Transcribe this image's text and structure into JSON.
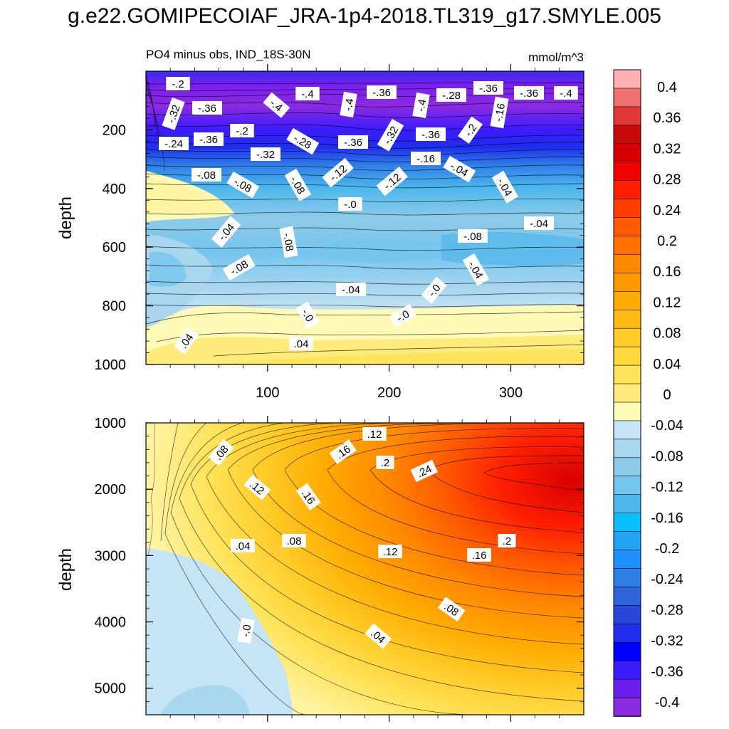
{
  "title": "g.e22.GOMIPECOIAF_JRA-1p4-2018.TL319_g17.SMYLE.005",
  "colors": {
    "neg": [
      "#8a2be2",
      "#6a1ef0",
      "#3b1bff",
      "#0000ff",
      "#1e2fee",
      "#2846d8",
      "#3064dd",
      "#2f7fe8",
      "#1e90ff",
      "#20a5f5",
      "#0cc0ff",
      "#4cb8ec",
      "#74c5ee",
      "#8ecbe8",
      "#a8d7ef",
      "#c6e5f4"
    ],
    "pos": [
      "#fffab5",
      "#ffeb7a",
      "#ffe35a",
      "#ffd83c",
      "#ffcb26",
      "#ffbb12",
      "#ffaa00",
      "#ff9900",
      "#ff8a00",
      "#ff7200",
      "#ff5a00",
      "#ff3f00",
      "#ff1e00",
      "#f20000",
      "#d80000",
      "#c90a0a",
      "#e23838",
      "#f07070",
      "#ffb0b0"
    ]
  },
  "chart_data": {
    "type": "contour",
    "variable": "PO4 minus obs",
    "units": "mmol/m^3",
    "colorbar": {
      "labels": [
        "0.4",
        "0.36",
        "0.32",
        "0.28",
        "0.24",
        "0.2",
        "0.16",
        "0.12",
        "0.08",
        "0.04",
        "0",
        "-0.04",
        "-0.08",
        "-0.12",
        "-0.16",
        "-0.2",
        "-0.24",
        "-0.28",
        "-0.32",
        "-0.36",
        "-0.4"
      ],
      "range": [
        -0.42,
        0.42
      ]
    },
    "panels": [
      {
        "left_title": "PO4 minus obs, IND_18S-30N",
        "right_title": "mmol/m^3",
        "ylabel": "depth",
        "ylim": [
          0,
          1000
        ],
        "yticks": [
          "200",
          "400",
          "600",
          "800",
          "1000"
        ],
        "xlim": [
          0,
          360
        ],
        "xticks": [
          "100",
          "200",
          "300"
        ],
        "contour_labels": [
          "-.2",
          "-.32",
          "-.36",
          "-.4",
          "-.4",
          "-.36",
          "-.4",
          "-.4",
          "-.28",
          "-.36",
          "-.36",
          "-.4",
          "-.16",
          "-.24",
          "-.36",
          "-.2",
          "-.32",
          "-.28",
          "-.36",
          "-.32",
          "-.36",
          "-.2",
          "-.16",
          "-.04",
          "-.08",
          "-.08",
          "-.12",
          "-.12",
          "-.08",
          "-.04",
          "-.0",
          "-.04",
          "-.08",
          "-.08",
          "-.04",
          "-.08",
          "-.04",
          "-.04",
          "-.0",
          "-.0",
          "-.0",
          ".04",
          ".04"
        ]
      },
      {
        "ylabel": "depth",
        "ylim": [
          1000,
          5400
        ],
        "yticks": [
          "1000",
          "2000",
          "3000",
          "4000",
          "5000"
        ],
        "xlim": [
          0,
          360
        ],
        "contour_labels": [
          ".12",
          ".08",
          ".16",
          ".2",
          ".24",
          ".12",
          ".16",
          ".2",
          ".04",
          ".08",
          ".12",
          ".16",
          ".08",
          ".04",
          "-.0"
        ]
      }
    ]
  }
}
